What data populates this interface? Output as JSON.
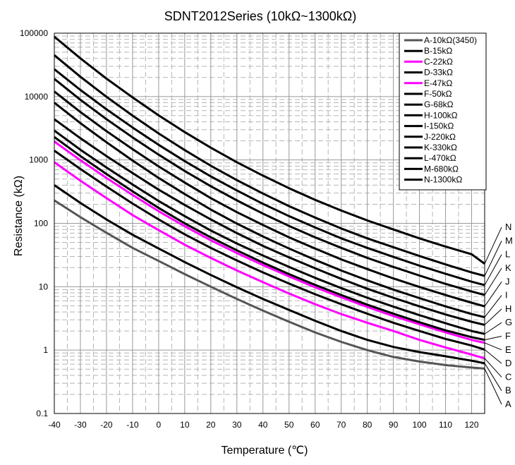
{
  "chart_data": {
    "type": "line",
    "title": "SDNT2012Series (10kΩ~1300kΩ)",
    "xlabel": "Temperature (℃)",
    "ylabel": "Resistance (kΩ)",
    "xlim": [
      -40,
      125
    ],
    "ylim": [
      0.1,
      100000
    ],
    "y_scale": "log",
    "grid": true,
    "legend_position": "top-right",
    "x": [
      -40,
      -30,
      -20,
      -10,
      0,
      10,
      20,
      30,
      40,
      50,
      60,
      70,
      80,
      90,
      100,
      110,
      120,
      125
    ],
    "x_tick_labels": [
      "-40",
      "-30",
      "-20",
      "-10",
      "0",
      "10",
      "20",
      "30",
      "40",
      "50",
      "60",
      "70",
      "80",
      "90",
      "100",
      "110",
      "120"
    ],
    "y_tick_labels": [
      "100000",
      "10000",
      "1000",
      "100",
      "10",
      "1",
      "0.1"
    ],
    "series": [
      {
        "name": "A-10kΩ(3450)",
        "end_label": "A",
        "color": "#555555",
        "values": [
          230,
          125,
          71,
          41,
          25.5,
          15.8,
          10,
          6.4,
          4.2,
          2.8,
          1.9,
          1.35,
          1.0,
          0.78,
          0.66,
          0.58,
          0.53,
          0.51
        ]
      },
      {
        "name": "B-15kΩ",
        "end_label": "B",
        "color": "#000000",
        "values": [
          400,
          210,
          115,
          66,
          40,
          24.5,
          15.3,
          9.8,
          6.4,
          4.3,
          2.9,
          2.0,
          1.45,
          1.12,
          0.93,
          0.8,
          0.68,
          0.62
        ]
      },
      {
        "name": "C-22kΩ",
        "end_label": "C",
        "color": "#FF00FF",
        "values": [
          920,
          470,
          250,
          135,
          78,
          46,
          28.5,
          18,
          11.8,
          7.8,
          5.3,
          3.7,
          2.7,
          2.0,
          1.45,
          1.1,
          0.85,
          0.74
        ]
      },
      {
        "name": "D-33kΩ",
        "end_label": "D",
        "color": "#000000",
        "values": [
          1400,
          720,
          380,
          205,
          115,
          67,
          41,
          26,
          16.8,
          11.2,
          7.6,
          5.3,
          3.75,
          2.7,
          2.0,
          1.5,
          1.18,
          1.02
        ]
      },
      {
        "name": "E-47kΩ",
        "end_label": "E",
        "color": "#FF00FF",
        "values": [
          1950,
          990,
          520,
          280,
          155,
          90,
          54,
          34,
          22,
          14.5,
          9.8,
          6.8,
          4.8,
          3.45,
          2.55,
          1.9,
          1.45,
          1.3
        ]
      },
      {
        "name": "F-50kΩ",
        "end_label": "F",
        "color": "#000000",
        "values": [
          2300,
          1150,
          600,
          320,
          175,
          100,
          60,
          37.5,
          24,
          15.8,
          10.7,
          7.4,
          5.2,
          3.75,
          2.75,
          2.05,
          1.6,
          1.45
        ]
      },
      {
        "name": "G-68kΩ",
        "end_label": "G",
        "color": "#000000",
        "values": [
          2900,
          1450,
          760,
          410,
          225,
          130,
          77,
          48,
          31,
          20.5,
          13.8,
          9.5,
          6.7,
          4.85,
          3.55,
          2.65,
          2.0,
          1.8
        ]
      },
      {
        "name": "H-100kΩ",
        "end_label": "H",
        "color": "#000000",
        "values": [
          4400,
          2200,
          1150,
          620,
          340,
          195,
          115,
          70,
          44,
          29,
          19.5,
          13.3,
          9.3,
          6.7,
          4.9,
          3.65,
          2.8,
          2.5
        ]
      },
      {
        "name": "I-150kΩ",
        "end_label": "I",
        "color": "#000000",
        "values": [
          8000,
          3800,
          1900,
          980,
          520,
          290,
          165,
          99,
          62,
          40,
          26.5,
          18,
          12.6,
          9.0,
          6.6,
          4.9,
          3.7,
          3.3
        ]
      },
      {
        "name": "J-220kΩ",
        "end_label": "J",
        "color": "#000000",
        "values": [
          12000,
          5700,
          2850,
          1480,
          790,
          440,
          250,
          150,
          94,
          60,
          40,
          27,
          19,
          13.5,
          9.9,
          7.4,
          5.6,
          4.9
        ]
      },
      {
        "name": "K-330kΩ",
        "end_label": "K",
        "color": "#000000",
        "values": [
          19000,
          8900,
          4400,
          2270,
          1210,
          670,
          385,
          230,
          142,
          91,
          60,
          41,
          28.5,
          20.5,
          15,
          11.1,
          8.4,
          7.4
        ]
      },
      {
        "name": "L-470kΩ",
        "end_label": "L",
        "color": "#000000",
        "values": [
          27000,
          12700,
          6300,
          3250,
          1730,
          960,
          550,
          330,
          203,
          130,
          86,
          58,
          41,
          29.5,
          21.5,
          16,
          12,
          10.6
        ]
      },
      {
        "name": "M-680kΩ",
        "end_label": "M",
        "color": "#000000",
        "values": [
          45000,
          20500,
          9900,
          5000,
          2620,
          1430,
          810,
          480,
          295,
          187,
          123,
          83,
          58,
          42,
          30.5,
          22.5,
          16.8,
          14.8
        ]
      },
      {
        "name": "N-1300kΩ",
        "end_label": "N",
        "color": "#000000",
        "values": [
          88000,
          40000,
          19200,
          9700,
          5050,
          2750,
          1560,
          920,
          565,
          358,
          235,
          159,
          111,
          80,
          58,
          43,
          32.5,
          23
        ]
      }
    ]
  }
}
